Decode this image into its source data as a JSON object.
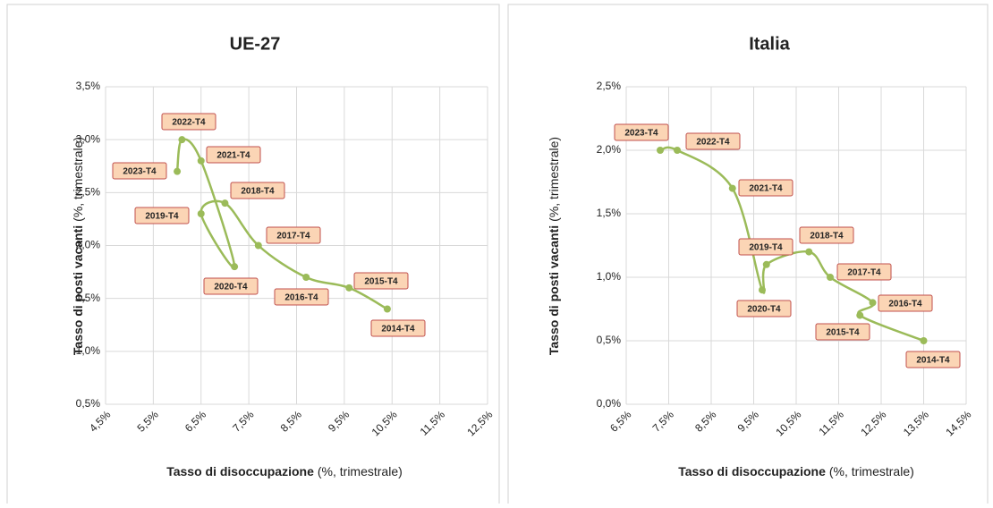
{
  "chart_data": [
    {
      "type": "line",
      "title": "UE-27",
      "ylabel": "Tasso di posti vacanti",
      "ylabel_note": "(%, trimestrale)",
      "xlabel": "Tasso di disoccupazione",
      "xlabel_note": "(%, trimestrale)",
      "labels": [
        "2014-T4",
        "2015-T4",
        "2016-T4",
        "2017-T4",
        "2018-T4",
        "2019-T4",
        "2020-T4",
        "2021-T4",
        "2022-T4",
        "2023-T4"
      ],
      "x": [
        10.4,
        9.6,
        8.7,
        7.7,
        7.0,
        6.5,
        7.2,
        6.5,
        6.1,
        6.0
      ],
      "values": [
        1.4,
        1.6,
        1.7,
        2.0,
        2.4,
        2.3,
        1.8,
        2.8,
        3.0,
        2.7
      ],
      "color": "#9bbb59",
      "xlim": [
        4.5,
        12.5
      ],
      "xticks": [
        {
          "value": 4.5,
          "label": "4,5%"
        },
        {
          "value": 5.5,
          "label": "5,5%"
        },
        {
          "value": 6.5,
          "label": "6,5%"
        },
        {
          "value": 7.5,
          "label": "7,5%"
        },
        {
          "value": 8.5,
          "label": "8,5%"
        },
        {
          "value": 9.5,
          "label": "9,5%"
        },
        {
          "value": 10.5,
          "label": "10,5%"
        },
        {
          "value": 11.5,
          "label": "11,5%"
        },
        {
          "value": 12.5,
          "label": "12,5%"
        }
      ],
      "ylim": [
        0.5,
        3.5
      ],
      "yticks": [
        {
          "value": 0.5,
          "label": "0,5%"
        },
        {
          "value": 1.0,
          "label": "1,0%"
        },
        {
          "value": 1.5,
          "label": "1,5%"
        },
        {
          "value": 2.0,
          "label": "2,0%"
        },
        {
          "value": 2.5,
          "label": "2,5%"
        },
        {
          "value": 3.0,
          "label": "3,0%"
        },
        {
          "value": 3.5,
          "label": "3,5%"
        }
      ],
      "grid": true
    },
    {
      "type": "line",
      "title": "Italia",
      "ylabel": "Tasso di posti vacanti",
      "ylabel_note": "(%, trimestrale)",
      "xlabel": "Tasso di disoccupazione",
      "xlabel_note": "(%, trimestrale)",
      "labels": [
        "2014-T4",
        "2015-T4",
        "2016-T4",
        "2017-T4",
        "2018-T4",
        "2019-T4",
        "2020-T4",
        "2021-T4",
        "2022-T4",
        "2023-T4"
      ],
      "x": [
        13.5,
        12.0,
        12.3,
        11.3,
        10.8,
        9.8,
        9.7,
        9.0,
        7.7,
        7.3
      ],
      "values": [
        0.5,
        0.7,
        0.8,
        1.0,
        1.2,
        1.1,
        0.9,
        1.7,
        2.0,
        2.0
      ],
      "color": "#9bbb59",
      "xlim": [
        6.5,
        14.5
      ],
      "xticks": [
        {
          "value": 6.5,
          "label": "6,5%"
        },
        {
          "value": 7.5,
          "label": "7,5%"
        },
        {
          "value": 8.5,
          "label": "8,5%"
        },
        {
          "value": 9.5,
          "label": "9,5%"
        },
        {
          "value": 10.5,
          "label": "10,5%"
        },
        {
          "value": 11.5,
          "label": "11,5%"
        },
        {
          "value": 12.5,
          "label": "12,5%"
        },
        {
          "value": 13.5,
          "label": "13,5%"
        },
        {
          "value": 14.5,
          "label": "14,5%"
        }
      ],
      "ylim": [
        0.0,
        2.5
      ],
      "yticks": [
        {
          "value": 0.0,
          "label": "0,0%"
        },
        {
          "value": 0.5,
          "label": "0,5%"
        },
        {
          "value": 1.0,
          "label": "1,0%"
        },
        {
          "value": 1.5,
          "label": "1,5%"
        },
        {
          "value": 2.0,
          "label": "2,0%"
        },
        {
          "value": 2.5,
          "label": "2,5%"
        }
      ],
      "grid": true
    }
  ]
}
